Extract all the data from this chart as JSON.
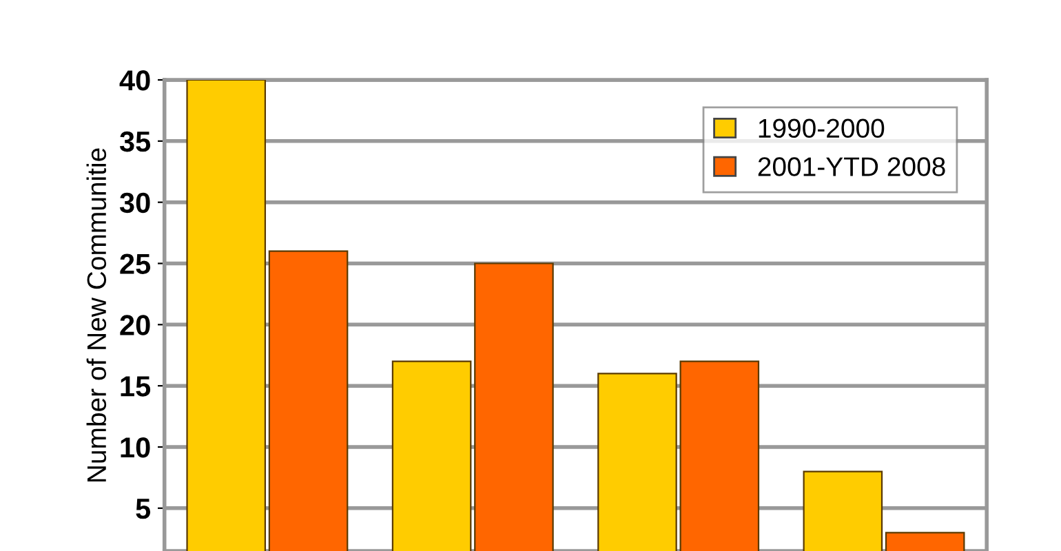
{
  "chart_data": {
    "type": "bar",
    "ylabel": "Number of New Communitie",
    "categories": [
      null,
      null,
      null,
      null
    ],
    "series": [
      {
        "name": "1990-2000",
        "color": "#ffcc00",
        "values": [
          40,
          17,
          16,
          8
        ]
      },
      {
        "name": "2001-YTD 2008",
        "color": "#ff6600",
        "values": [
          26,
          25,
          17,
          3
        ]
      }
    ],
    "ylim": [
      1.5,
      40
    ],
    "yticks": [
      5,
      10,
      15,
      20,
      25,
      30,
      35,
      40
    ],
    "grid": "y",
    "legend": "top right"
  }
}
